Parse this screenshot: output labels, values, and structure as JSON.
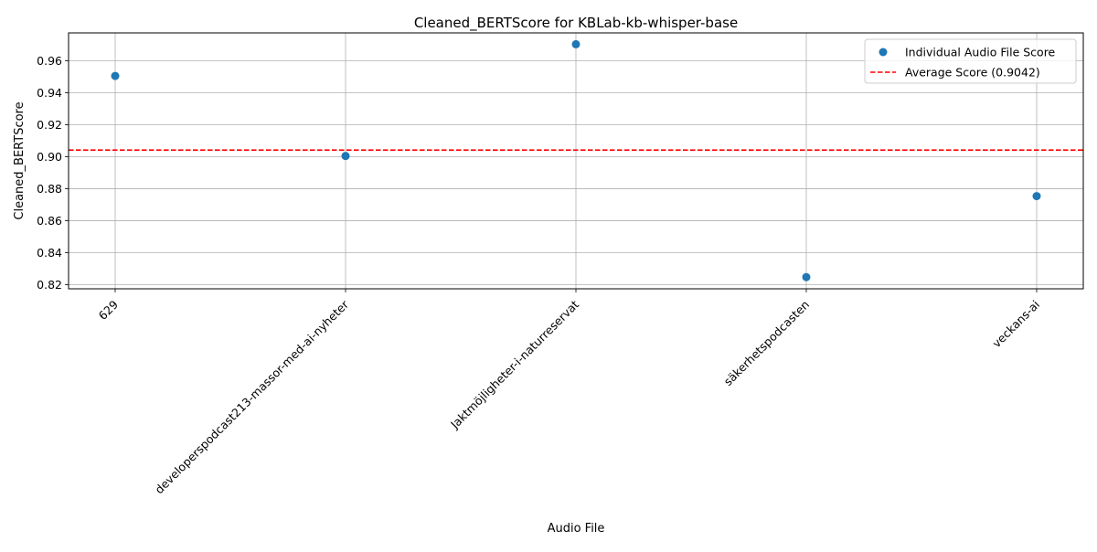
{
  "chart_data": {
    "type": "scatter",
    "title": "Cleaned_BERTScore for KBLab-kb-whisper-base",
    "xlabel": "Audio File",
    "ylabel": "Cleaned_BERTScore",
    "categories": [
      "629",
      "developerspodcast213-massor-med-ai-nyheter",
      "Jaktmöjligheter-i-naturreservat",
      "säkerhetspodcasten",
      "veckans-ai"
    ],
    "series": [
      {
        "name": "Individual Audio File Score",
        "values": [
          0.9505,
          0.9005,
          0.9703,
          0.8248,
          0.8754
        ],
        "color": "#1f77b4"
      }
    ],
    "average": {
      "name": "Average Score (0.9042)",
      "value": 0.9042,
      "color": "#ff0000",
      "style": "dashed"
    },
    "ylim": [
      0.8175,
      0.9774
    ],
    "yticks": [
      "0.82",
      "0.84",
      "0.86",
      "0.88",
      "0.90",
      "0.92",
      "0.94",
      "0.96"
    ],
    "ytick_values": [
      0.82,
      0.84,
      0.86,
      0.88,
      0.9,
      0.92,
      0.94,
      0.96
    ],
    "grid": true,
    "legend_position": "top-right"
  }
}
